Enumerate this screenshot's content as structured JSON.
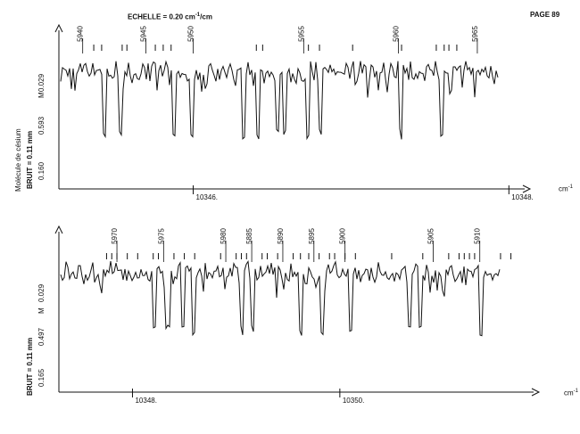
{
  "header": {
    "scale_label": "ECHELLE = 0.20 cm",
    "scale_unit_sup": "-1",
    "scale_unit_tail": "/cm",
    "page": "PAGE 89"
  },
  "colors": {
    "ink": "#111111",
    "paper": "#ffffff"
  },
  "panels": [
    {
      "axis_unit": "cm",
      "axis_unit_sup": "-1",
      "side": {
        "molecule": "Molécule de césium",
        "noise": "BRUIT = 0.11 mm",
        "low": "0.160",
        "mid": "0.593",
        "high": "0.029",
        "letter": "M"
      }
    },
    {
      "axis_unit": "cm",
      "axis_unit_sup": "-1",
      "side": {
        "noise": "BRUIT = 0.11 mm",
        "low": "0.165",
        "mid": "0.497",
        "high": "0.029",
        "letter": "M"
      }
    }
  ],
  "chart_data": [
    {
      "type": "line",
      "xlabel": "cm-1",
      "x_range": [
        10345.2,
        10348.1
      ],
      "axis_ticks": [
        {
          "value": 10346.0,
          "label": "10346."
        },
        {
          "value": 10348.0,
          "label": "10348."
        }
      ],
      "line_labels": [
        {
          "value": 10345.3,
          "label": "5940"
        },
        {
          "value": 10345.7,
          "label": "5945"
        },
        {
          "value": 10346.0,
          "label": "5950"
        },
        {
          "value": 10346.7,
          "label": "5955"
        },
        {
          "value": 10347.3,
          "label": "5960"
        },
        {
          "value": 10347.8,
          "label": "5965"
        }
      ],
      "line_markers": [
        10345.37,
        10345.42,
        10345.55,
        10345.58,
        10345.76,
        10345.81,
        10345.86,
        10346.4,
        10346.44,
        10346.73,
        10346.8,
        10347.01,
        10347.32,
        10347.54,
        10347.59,
        10347.62,
        10347.67
      ]
    },
    {
      "type": "line",
      "xlabel": "cm-1",
      "x_range": [
        10347.6,
        10351.8
      ],
      "axis_ticks": [
        {
          "value": 10348.0,
          "label": "10348."
        },
        {
          "value": 10350.0,
          "label": "10350."
        }
      ],
      "line_labels": [
        {
          "value": 10347.85,
          "label": "5970"
        },
        {
          "value": 10348.3,
          "label": "5975"
        },
        {
          "value": 10348.9,
          "label": "5980"
        },
        {
          "value": 10349.15,
          "label": "5885"
        },
        {
          "value": 10349.45,
          "label": "5890"
        },
        {
          "value": 10349.75,
          "label": "5895"
        },
        {
          "value": 10350.05,
          "label": "5900"
        },
        {
          "value": 10350.9,
          "label": "5905"
        },
        {
          "value": 10351.35,
          "label": "5910"
        }
      ],
      "line_markers": [
        10347.75,
        10347.8,
        10347.85,
        10347.95,
        10348.05,
        10348.2,
        10348.25,
        10348.4,
        10348.5,
        10348.6,
        10348.85,
        10349.0,
        10349.05,
        10349.1,
        10349.25,
        10349.3,
        10349.4,
        10349.55,
        10349.62,
        10349.7,
        10349.8,
        10349.9,
        10349.95,
        10350.05,
        10350.15,
        10350.5,
        10350.8,
        10351.05,
        10351.15,
        10351.2,
        10351.25,
        10351.3,
        10351.55,
        10351.65
      ]
    }
  ]
}
